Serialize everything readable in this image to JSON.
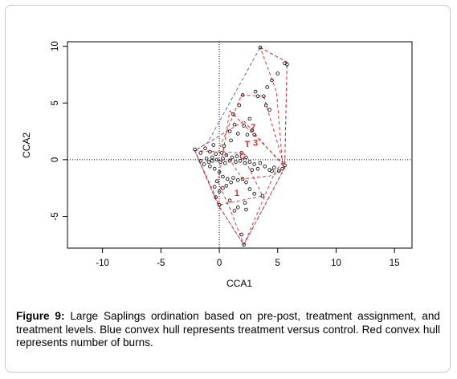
{
  "figure": {
    "caption_label": "Figure 9:",
    "caption_text": " Large Saplings ordination based on pre-post, treatment assignment, and treatment levels.  Blue convex hull represents treatment versus control. Red convex hull represents number of burns."
  },
  "chart_data": {
    "type": "scatter",
    "xlabel": "CCA1",
    "ylabel": "CCA2",
    "xlim": [
      -13,
      16.5
    ],
    "ylim": [
      -7.8,
      10.4
    ],
    "xticks": [
      -10,
      -5,
      0,
      5,
      10,
      15
    ],
    "yticks": [
      -5,
      0,
      5,
      10
    ],
    "reference_lines": {
      "x": 0,
      "y": 0,
      "style": "dotted"
    },
    "colors": {
      "points": "#000000",
      "blue_hull": "#3f5bd6",
      "red_hull": "#e0262a",
      "labels": "#e0262a"
    },
    "treatment_labels": [
      {
        "text": "7",
        "x": 2.9,
        "y": 2.9
      },
      {
        "text": "3",
        "x": 3.1,
        "y": 1.5
      },
      {
        "text": "T",
        "x": 2.4,
        "y": 1.4
      },
      {
        "text": "C",
        "x": 2.0,
        "y": 0.3
      },
      {
        "text": "1",
        "x": 1.5,
        "y": -2.9
      }
    ],
    "blue_hull": [
      [
        3.5,
        9.9
      ],
      [
        5.8,
        8.6
      ],
      [
        5.6,
        -0.7
      ],
      [
        2.1,
        -7.5
      ],
      [
        -0.1,
        -4.0
      ],
      [
        -2.1,
        0.8
      ],
      [
        -1.0,
        1.5
      ]
    ],
    "red_hulls": [
      [
        [
          3.5,
          9.9
        ],
        [
          5.8,
          8.6
        ],
        [
          5.6,
          -0.7
        ],
        [
          5.4,
          -0.3
        ],
        [
          4.9,
          6.0
        ]
      ],
      [
        [
          1.9,
          5.7
        ],
        [
          3.8,
          5.6
        ],
        [
          5.6,
          -0.7
        ],
        [
          4.6,
          -1.4
        ],
        [
          2.0,
          -1.7
        ],
        [
          0.1,
          1.2
        ]
      ],
      [
        [
          0.9,
          4.3
        ],
        [
          5.4,
          -0.3
        ],
        [
          4.8,
          -1.0
        ],
        [
          2.1,
          -7.5
        ],
        [
          0.9,
          -4.3
        ],
        [
          -0.1,
          -2.0
        ]
      ],
      [
        [
          2.1,
          3.4
        ],
        [
          5.6,
          -0.7
        ],
        [
          2.1,
          -7.5
        ],
        [
          -0.1,
          -4.0
        ],
        [
          -2.1,
          0.8
        ]
      ],
      [
        [
          -2.1,
          0.8
        ],
        [
          1.9,
          0.6
        ],
        [
          3.7,
          -3.2
        ],
        [
          0.0,
          -4.0
        ]
      ]
    ],
    "points": [
      [
        3.5,
        9.9
      ],
      [
        5.6,
        8.5
      ],
      [
        5.8,
        8.4
      ],
      [
        5.0,
        7.6
      ],
      [
        4.5,
        7.0
      ],
      [
        4.1,
        6.4
      ],
      [
        3.1,
        6.0
      ],
      [
        3.3,
        5.6
      ],
      [
        3.8,
        5.6
      ],
      [
        4.0,
        4.8
      ],
      [
        4.3,
        4.4
      ],
      [
        2.0,
        5.7
      ],
      [
        1.7,
        4.8
      ],
      [
        1.2,
        4.0
      ],
      [
        2.6,
        3.6
      ],
      [
        2.1,
        3.0
      ],
      [
        1.3,
        3.1
      ],
      [
        0.9,
        2.5
      ],
      [
        1.6,
        2.3
      ],
      [
        2.4,
        2.2
      ],
      [
        2.8,
        2.6
      ],
      [
        3.0,
        2.2
      ],
      [
        1.0,
        1.7
      ],
      [
        0.4,
        1.2
      ],
      [
        -0.5,
        1.3
      ],
      [
        -1.2,
        1.0
      ],
      [
        -2.1,
        0.9
      ],
      [
        -1.6,
        0.6
      ],
      [
        -0.8,
        0.7
      ],
      [
        -0.3,
        0.5
      ],
      [
        0.2,
        0.6
      ],
      [
        0.6,
        0.4
      ],
      [
        1.1,
        0.2
      ],
      [
        1.5,
        0.3
      ],
      [
        1.9,
        0.6
      ],
      [
        2.3,
        0.2
      ],
      [
        -1.1,
        0.1
      ],
      [
        -0.6,
        -0.1
      ],
      [
        0.1,
        -0.2
      ],
      [
        0.5,
        -0.3
      ],
      [
        0.9,
        -0.1
      ],
      [
        1.4,
        -0.2
      ],
      [
        1.8,
        -0.1
      ],
      [
        2.2,
        -0.3
      ],
      [
        2.6,
        -0.2
      ],
      [
        3.0,
        -0.4
      ],
      [
        3.5,
        -0.3
      ],
      [
        3.9,
        -0.6
      ],
      [
        4.3,
        -0.9
      ],
      [
        4.7,
        -0.7
      ],
      [
        5.1,
        -1.0
      ],
      [
        5.4,
        -0.8
      ],
      [
        5.6,
        -0.5
      ],
      [
        4.5,
        -1.0
      ],
      [
        3.3,
        -0.8
      ],
      [
        2.8,
        -0.9
      ],
      [
        -1.3,
        -0.4
      ],
      [
        -0.8,
        -0.6
      ],
      [
        -0.4,
        -0.8
      ],
      [
        0.0,
        -1.1
      ],
      [
        0.3,
        -1.5
      ],
      [
        0.7,
        -1.7
      ],
      [
        -0.2,
        -1.9
      ],
      [
        -0.4,
        -2.4
      ],
      [
        0.0,
        -2.8
      ],
      [
        0.3,
        -2.5
      ],
      [
        1.0,
        -2.0
      ],
      [
        1.2,
        -1.6
      ],
      [
        1.6,
        -1.8
      ],
      [
        2.0,
        -1.7
      ],
      [
        2.3,
        -2.0
      ],
      [
        2.6,
        -2.6
      ],
      [
        3.0,
        -3.0
      ],
      [
        3.7,
        -3.2
      ],
      [
        2.2,
        -3.8
      ],
      [
        1.6,
        -4.2
      ],
      [
        1.3,
        -4.5
      ],
      [
        0.9,
        -3.6
      ],
      [
        0.0,
        -4.0
      ],
      [
        -0.3,
        -3.3
      ],
      [
        2.3,
        -4.4
      ],
      [
        2.1,
        -7.5
      ],
      [
        1.9,
        -6.6
      ],
      [
        0.6,
        -2.3
      ],
      [
        -0.6,
        0.2
      ],
      [
        -0.2,
        0.0
      ],
      [
        0.3,
        0.1
      ],
      [
        -0.9,
        -0.2
      ],
      [
        -1.6,
        -0.1
      ]
    ]
  }
}
